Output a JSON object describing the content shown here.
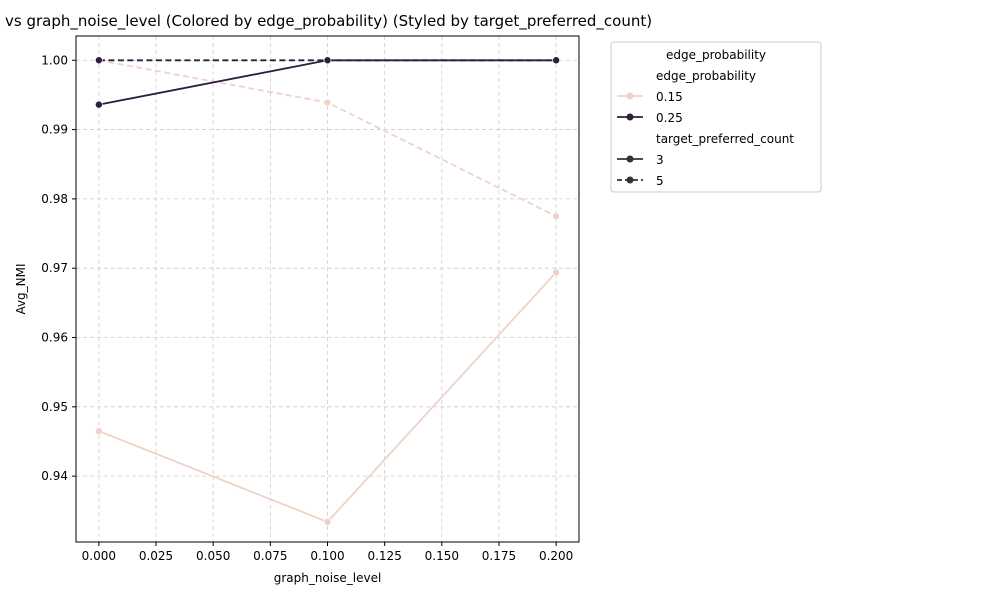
{
  "chart_data": {
    "type": "line",
    "title": "vs graph_noise_level (Colored by edge_probability) (Styled by target_preferred_count)",
    "xlabel": "graph_noise_level",
    "ylabel": "Avg_NMI",
    "xlim": [
      -0.01,
      0.21
    ],
    "ylim": [
      0.9305,
      1.0035
    ],
    "x_ticks": [
      0.0,
      0.025,
      0.05,
      0.075,
      0.1,
      0.125,
      0.15,
      0.175,
      0.2
    ],
    "x_tick_labels": [
      "0.000",
      "0.025",
      "0.050",
      "0.075",
      "0.100",
      "0.125",
      "0.150",
      "0.175",
      "0.200"
    ],
    "y_ticks": [
      0.94,
      0.95,
      0.96,
      0.97,
      0.98,
      0.99,
      1.0
    ],
    "y_tick_labels": [
      "0.94",
      "0.95",
      "0.96",
      "0.97",
      "0.98",
      "0.99",
      "1.00"
    ],
    "grid": true,
    "legend_position": "outside-right",
    "series": [
      {
        "edge_probability": "0.15",
        "target_preferred_count": "3",
        "color": "#efd2c8",
        "dash": "solid",
        "x": [
          0.0,
          0.1,
          0.2
        ],
        "y": [
          0.9465,
          0.9334,
          0.9694
        ]
      },
      {
        "edge_probability": "0.15",
        "target_preferred_count": "5",
        "color": "#efd2c8",
        "dash": "dashed",
        "x": [
          0.0,
          0.1,
          0.2
        ],
        "y": [
          1.0,
          0.9939,
          0.9775
        ]
      },
      {
        "edge_probability": "0.25",
        "target_preferred_count": "3",
        "color": "#2d1e3e",
        "dash": "solid",
        "x": [
          0.0,
          0.1,
          0.2
        ],
        "y": [
          0.9936,
          1.0,
          1.0
        ]
      },
      {
        "edge_probability": "0.25",
        "target_preferred_count": "5",
        "color": "#2d1e3e",
        "dash": "dashed",
        "x": [
          0.0,
          0.1,
          0.2
        ],
        "y": [
          1.0,
          1.0,
          1.0
        ]
      }
    ],
    "legend": {
      "title": "edge_probability",
      "hue_header": "edge_probability",
      "hue_entries": [
        {
          "label": "0.15",
          "color": "#efd2c8"
        },
        {
          "label": "0.25",
          "color": "#2d1e3e"
        }
      ],
      "style_header": "target_preferred_count",
      "style_entries": [
        {
          "label": "3",
          "dash": "solid",
          "color": "#333333"
        },
        {
          "label": "5",
          "dash": "dashed",
          "color": "#333333"
        }
      ]
    }
  }
}
